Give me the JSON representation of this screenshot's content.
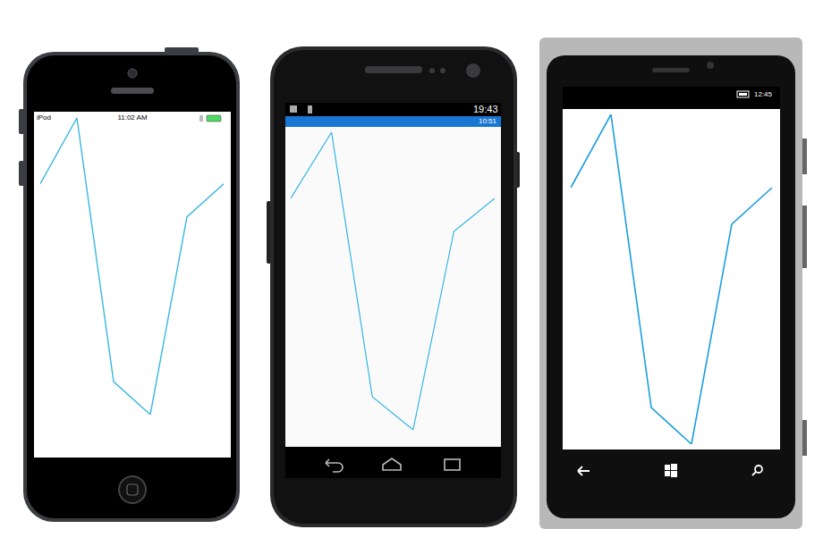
{
  "chart_data": [
    {
      "type": "line",
      "categories": [
        null,
        null,
        null,
        null,
        null,
        null
      ],
      "values": [
        80,
        100,
        20,
        10,
        70,
        80
      ],
      "color": "#39b7e3",
      "ylim": [
        10,
        100
      ],
      "tick_labels": false,
      "grid": false
    },
    {
      "type": "line",
      "categories": [
        null,
        null,
        null,
        null,
        null,
        null
      ],
      "values": [
        80,
        100,
        20,
        10,
        70,
        80
      ],
      "color": "#33b5e5",
      "ylim": [
        10,
        100
      ],
      "tick_labels": false,
      "grid": false
    },
    {
      "type": "line",
      "categories": [
        null,
        null,
        null,
        null,
        null,
        null
      ],
      "values": [
        80,
        100,
        20,
        10,
        70,
        80
      ],
      "color": "#1b9ee0",
      "ylim": [
        10,
        100
      ],
      "tick_labels": false,
      "grid": false
    }
  ],
  "screens": [
    {
      "status_texts": [
        "iPod",
        "11:02 AM"
      ]
    },
    {
      "status_texts": [
        "19:43",
        "10:51"
      ]
    },
    {
      "status_texts": [
        "12:45"
      ]
    }
  ]
}
